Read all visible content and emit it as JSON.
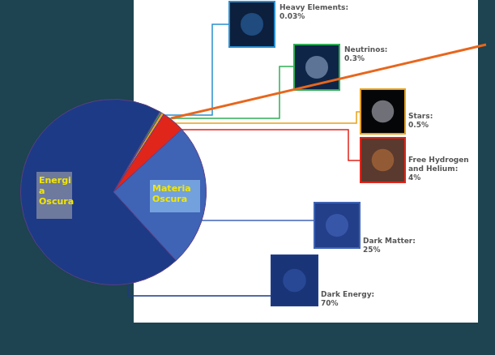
{
  "chart_data": {
    "type": "pie",
    "categories": [
      "Heavy Elements:",
      "Neutrinos:",
      "Stars:",
      "Free Hydrogen and Helium:",
      "Dark Matter:",
      "Dark Energy:"
    ],
    "values": [
      0.03,
      0.3,
      0.5,
      4,
      25,
      70
    ],
    "value_labels": [
      "0.03%",
      "0.3%",
      "0.5%",
      "4%",
      "25%",
      "70%"
    ],
    "colors": [
      "#2a8fd0",
      "#2fae57",
      "#e8a21a",
      "#e0251b",
      "#3f63b5",
      "#1d3a86"
    ],
    "annotations": [
      {
        "text": "Energia Oscura"
      },
      {
        "text": "Materia Oscura"
      }
    ]
  }
}
